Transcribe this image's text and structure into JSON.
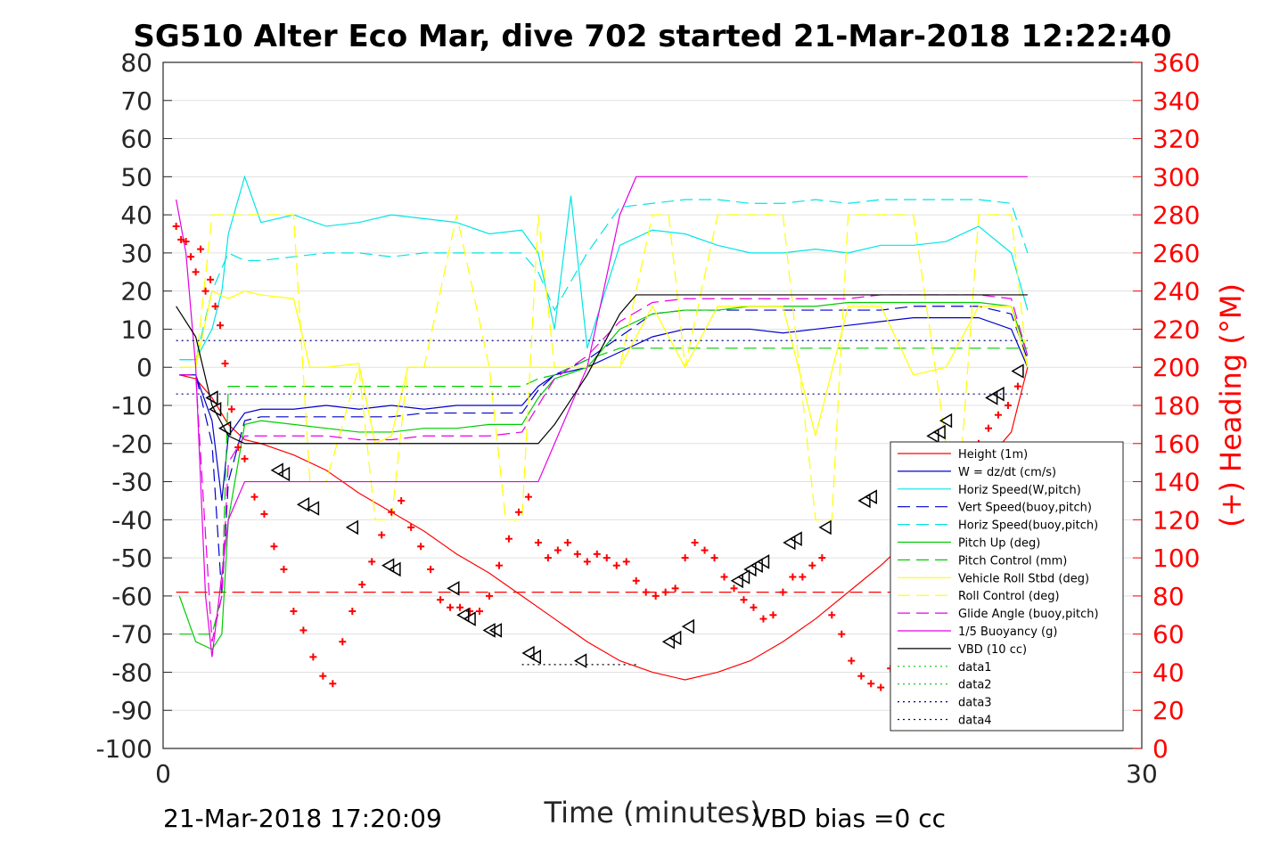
{
  "chart_data": {
    "type": "line",
    "title": "SG510 Alter Eco Mar, dive 702 started 21-Mar-2018 12:22:40",
    "xlabel": "Time (minutes)",
    "ylabel_right": "(+) Heading (°M)",
    "xlim": [
      0,
      30
    ],
    "ylim": [
      -100,
      80
    ],
    "ylim_right": [
      0,
      360
    ],
    "x_ticks": [
      "0",
      "30"
    ],
    "y_ticks": [
      "80",
      "70",
      "60",
      "50",
      "40",
      "30",
      "20",
      "10",
      "0",
      "-10",
      "-20",
      "-30",
      "-40",
      "-50",
      "-60",
      "-70",
      "-80",
      "-90",
      "-100"
    ],
    "y_ticks_right": [
      "360",
      "340",
      "320",
      "300",
      "280",
      "260",
      "240",
      "220",
      "200",
      "180",
      "160",
      "140",
      "120",
      "100",
      "80",
      "60",
      "40",
      "20",
      "0"
    ],
    "grid": "horizontal",
    "legend_position": "bottom-right",
    "footer_left": "21-Mar-2018 17:20:09",
    "footer_right": "VBD bias =0 cc",
    "series": [
      {
        "name": "Height (1m)",
        "color": "#ff0000",
        "style": "solid",
        "x": [
          0.5,
          1,
          1.5,
          2,
          2.5,
          3,
          4,
          5,
          6,
          7,
          8,
          9,
          10,
          11,
          12,
          13,
          14,
          15,
          16,
          17,
          18,
          19,
          20,
          21,
          22,
          23,
          24,
          25,
          26,
          26.5
        ],
        "y": [
          -2,
          -3,
          -8,
          -15,
          -19,
          -20,
          -23,
          -27,
          -33,
          -38,
          -43,
          -49,
          -54,
          -60,
          -66,
          -72,
          -77,
          -80,
          -82,
          -80,
          -77,
          -72,
          -66,
          -59,
          -52,
          -44,
          -36,
          -27,
          -17,
          0
        ]
      },
      {
        "name": "W = dz/dt (cm/s)",
        "color": "#0000cc",
        "style": "solid",
        "x": [
          0.5,
          1,
          1.5,
          1.8,
          2,
          2.5,
          3,
          4,
          5,
          6,
          7,
          8,
          9,
          10,
          11,
          11.5,
          12,
          13,
          14,
          15,
          16,
          17,
          18,
          19,
          20,
          21,
          22,
          23,
          24,
          25,
          26,
          26.5
        ],
        "y": [
          -2,
          -2,
          -14,
          -35,
          -18,
          -12,
          -11,
          -11,
          -10,
          -11,
          -10,
          -11,
          -10,
          -10,
          -10,
          -5,
          -2,
          0,
          4,
          8,
          10,
          10,
          10,
          9,
          10,
          11,
          12,
          13,
          13,
          13,
          10,
          0
        ]
      },
      {
        "name": "Horiz Speed(W,pitch)",
        "color": "#00e5e5",
        "style": "solid",
        "x": [
          0.5,
          1,
          1.5,
          1.8,
          2,
          2.5,
          3,
          4,
          5,
          6,
          7,
          8,
          9,
          10,
          11,
          11.5,
          12,
          12.5,
          13,
          14,
          15,
          16,
          17,
          18,
          19,
          20,
          21,
          22,
          23,
          24,
          25,
          26,
          26.5
        ],
        "y": [
          2,
          2,
          10,
          20,
          35,
          50,
          38,
          40,
          37,
          38,
          40,
          39,
          38,
          35,
          36,
          30,
          10,
          45,
          5,
          32,
          36,
          35,
          32,
          30,
          30,
          31,
          30,
          32,
          32,
          33,
          37,
          30,
          15
        ]
      },
      {
        "name": "Vert Speed(buoy,pitch)",
        "color": "#0000cc",
        "style": "dashed",
        "x": [
          0.5,
          1,
          1.5,
          1.8,
          2,
          2.5,
          3,
          4,
          5,
          6,
          7,
          8,
          9,
          10,
          11,
          11.5,
          12,
          13,
          14,
          15,
          16,
          17,
          18,
          19,
          20,
          21,
          22,
          23,
          24,
          25,
          26,
          26.5
        ],
        "y": [
          -2,
          -2,
          -20,
          -60,
          -30,
          -14,
          -13,
          -13,
          -13,
          -13,
          -13,
          -12,
          -12,
          -12,
          -12,
          -6,
          -2,
          2,
          8,
          14,
          15,
          15,
          15,
          15,
          15,
          15,
          15,
          16,
          16,
          16,
          14,
          2
        ]
      },
      {
        "name": "Horiz Speed(buoy,pitch)",
        "color": "#00e5e5",
        "style": "dashed",
        "x": [
          0.5,
          1,
          1.5,
          2,
          2.5,
          3,
          4,
          5,
          6,
          7,
          8,
          9,
          10,
          11,
          11.5,
          12,
          13,
          14,
          15,
          16,
          17,
          18,
          19,
          20,
          21,
          22,
          23,
          24,
          25,
          26,
          26.5
        ],
        "y": [
          2,
          2,
          20,
          30,
          28,
          28,
          29,
          30,
          30,
          29,
          30,
          30,
          30,
          30,
          25,
          15,
          30,
          42,
          43,
          44,
          44,
          43,
          43,
          44,
          43,
          44,
          44,
          44,
          44,
          43,
          30
        ]
      },
      {
        "name": "Pitch Up (deg)",
        "color": "#00cc00",
        "style": "solid",
        "x": [
          0.5,
          1,
          1.5,
          1.8,
          2,
          2.5,
          3,
          4,
          5,
          6,
          7,
          8,
          9,
          10,
          11,
          11.5,
          12,
          13,
          14,
          15,
          16,
          17,
          18,
          19,
          20,
          21,
          22,
          23,
          24,
          25,
          26,
          26.5
        ],
        "y": [
          -60,
          -72,
          -74,
          -70,
          -40,
          -15,
          -14,
          -15,
          -16,
          -17,
          -17,
          -16,
          -16,
          -15,
          -15,
          -8,
          -3,
          0,
          10,
          14,
          15,
          15,
          16,
          16,
          16,
          17,
          17,
          17,
          17,
          17,
          16,
          3
        ]
      },
      {
        "name": "Pitch Control (mm)",
        "color": "#00cc00",
        "style": "dashed",
        "x": [
          0.5,
          1,
          1.5,
          1.8,
          2,
          3,
          4,
          5,
          6,
          7,
          8,
          9,
          10,
          11,
          11.5,
          12,
          13,
          14,
          15,
          16,
          17,
          18,
          19,
          20,
          21,
          22,
          23,
          24,
          25,
          26,
          26.5
        ],
        "y": [
          -70,
          -70,
          -70,
          -60,
          -5,
          -5,
          -5,
          -5,
          -5,
          -5,
          -5,
          -5,
          -5,
          -5,
          -3,
          -2,
          2,
          5,
          5,
          5,
          5,
          5,
          5,
          5,
          5,
          5,
          5,
          5,
          5,
          5,
          5
        ]
      },
      {
        "name": "Vehicle Roll Stbd (deg)",
        "color": "#ffff00",
        "style": "solid",
        "x": [
          0.5,
          1,
          1.5,
          2,
          2.5,
          3,
          4,
          4.5,
          5,
          6,
          6.5,
          7,
          7.5,
          8,
          9,
          10,
          11,
          11.5,
          12,
          13,
          14,
          15,
          16,
          17,
          18,
          19,
          20,
          21,
          22,
          23,
          24,
          25,
          26,
          26.5
        ],
        "y": [
          0,
          0,
          20,
          18,
          20,
          19,
          18,
          0,
          0,
          1,
          -20,
          -18,
          0,
          0,
          0,
          0,
          0,
          0,
          0,
          0,
          0,
          16,
          0,
          16,
          16,
          16,
          -18,
          16,
          16,
          -2,
          0,
          16,
          16,
          0
        ]
      },
      {
        "name": "Roll Control (deg)",
        "color": "#ffff00",
        "style": "dashed",
        "x": [
          0.5,
          1,
          1.5,
          2,
          2.5,
          3,
          4,
          4.5,
          5,
          6,
          6.5,
          7,
          7.5,
          8,
          9,
          10,
          10.5,
          11,
          11.5,
          12,
          13,
          14,
          15,
          15.5,
          16,
          17,
          18,
          19,
          20,
          20.5,
          21,
          22,
          23,
          24,
          24.5,
          25,
          26,
          26.5
        ],
        "y": [
          0,
          0,
          40,
          40,
          40,
          40,
          40,
          -30,
          -30,
          0,
          -40,
          -40,
          0,
          0,
          40,
          0,
          -40,
          -40,
          40,
          0,
          0,
          0,
          40,
          40,
          0,
          40,
          40,
          40,
          -40,
          -40,
          40,
          40,
          40,
          -20,
          -20,
          40,
          40,
          0
        ]
      },
      {
        "name": "Glide Angle (buoy,pitch)",
        "color": "#e500e5",
        "style": "dashed",
        "x": [
          0.5,
          1,
          1.5,
          1.8,
          2,
          2.5,
          3,
          4,
          5,
          6,
          7,
          8,
          9,
          10,
          11,
          11.5,
          12,
          13,
          14,
          15,
          16,
          17,
          18,
          19,
          20,
          21,
          22,
          23,
          24,
          25,
          26,
          26.5
        ],
        "y": [
          -2,
          -2,
          -72,
          -60,
          -25,
          -18,
          -18,
          -18,
          -18,
          -19,
          -19,
          -18,
          -18,
          -18,
          -17,
          -10,
          -3,
          3,
          12,
          17,
          18,
          18,
          18,
          18,
          18,
          18,
          19,
          19,
          19,
          19,
          18,
          3
        ]
      },
      {
        "name": "1/5 Buoyancy (g)",
        "color": "#e500e5",
        "style": "solid",
        "x": [
          0.4,
          0.7,
          1,
          1.3,
          1.5,
          2,
          2.5,
          3,
          5,
          8,
          11,
          11.5,
          12,
          13,
          14,
          14.5,
          15,
          18,
          21,
          24,
          26.5
        ],
        "y": [
          44,
          30,
          0,
          -60,
          -76,
          -40,
          -30,
          -30,
          -30,
          -30,
          -30,
          -30,
          -20,
          0,
          40,
          50,
          50,
          50,
          50,
          50,
          50
        ]
      },
      {
        "name": "VBD (10 cc)",
        "color": "#000000",
        "style": "solid",
        "x": [
          0.4,
          1,
          1.5,
          2,
          2.5,
          3,
          5,
          8,
          11,
          11.5,
          12,
          13,
          14,
          14.5,
          15,
          18,
          21,
          24,
          26.5
        ],
        "y": [
          16,
          8,
          -10,
          -18,
          -20,
          -20,
          -20,
          -20,
          -20,
          -20,
          -15,
          -2,
          14,
          19,
          19,
          19,
          19,
          19,
          19
        ]
      },
      {
        "name": "data1",
        "color": "#00cc00",
        "style": "dotted",
        "x": [],
        "y": []
      },
      {
        "name": "data2",
        "color": "#00cc00",
        "style": "dotted",
        "x": [],
        "y": []
      },
      {
        "name": "data3",
        "color": "#000080",
        "style": "dotted",
        "x": [
          0.4,
          26.5
        ],
        "y": [
          7,
          7
        ]
      },
      {
        "name": "data4",
        "color": "#000080",
        "style": "dotted",
        "x": [
          0.4,
          26.5
        ],
        "y": [
          -7,
          -7
        ]
      }
    ],
    "extra_lines": [
      {
        "color": "#ff0000",
        "style": "dashed",
        "x": [
          0.4,
          26.5
        ],
        "y": [
          -59,
          -59
        ]
      },
      {
        "color": "#000000",
        "style": "dotted",
        "x": [
          11,
          14.5
        ],
        "y": [
          -78,
          -78
        ]
      }
    ],
    "heading_points": {
      "color": "#ff0000",
      "marker": "+",
      "x": [
        0.4,
        0.55,
        0.7,
        0.85,
        1.0,
        1.15,
        1.3,
        1.45,
        1.6,
        1.75,
        1.9,
        2.1,
        2.3,
        2.5,
        2.8,
        3.1,
        3.4,
        3.7,
        4,
        4.3,
        4.6,
        4.9,
        5.2,
        5.5,
        5.8,
        6.1,
        6.4,
        6.7,
        7,
        7.3,
        7.6,
        7.9,
        8.2,
        8.5,
        8.8,
        9.1,
        9.4,
        9.7,
        10,
        10.3,
        10.6,
        10.9,
        11.2,
        11.5,
        11.8,
        12.1,
        12.4,
        12.7,
        13,
        13.3,
        13.6,
        13.9,
        14.2,
        14.5,
        14.8,
        15.1,
        15.4,
        15.7,
        16,
        16.3,
        16.6,
        16.9,
        17.2,
        17.5,
        17.8,
        18.1,
        18.4,
        18.7,
        19,
        19.3,
        19.6,
        19.9,
        20.2,
        20.5,
        20.8,
        21.1,
        21.4,
        21.7,
        22,
        22.3,
        22.6,
        22.9,
        23.2,
        23.5,
        23.8,
        24.1,
        24.4,
        24.7,
        25,
        25.3,
        25.6,
        25.9,
        26.2
      ],
      "y": [
        274,
        267,
        266,
        258,
        250,
        262,
        240,
        246,
        232,
        222,
        202,
        178,
        158,
        152,
        132,
        123,
        106,
        94,
        72,
        62,
        48,
        38,
        34,
        56,
        72,
        86,
        98,
        112,
        124,
        130,
        116,
        106,
        94,
        78,
        74,
        74,
        72,
        72,
        80,
        96,
        110,
        124,
        132,
        108,
        100,
        104,
        108,
        102,
        98,
        102,
        100,
        96,
        98,
        88,
        82,
        80,
        82,
        84,
        100,
        108,
        104,
        100,
        90,
        84,
        78,
        74,
        68,
        70,
        82,
        90,
        90,
        96,
        100,
        70,
        60,
        46,
        38,
        34,
        32,
        42,
        54,
        72,
        88,
        110,
        122,
        135,
        142,
        150,
        160,
        168,
        175,
        180,
        190
      ]
    },
    "triangle_markers": {
      "color": "#000000",
      "x": [
        1.5,
        1.6,
        1.9,
        3.5,
        3.7,
        4.3,
        4.6,
        5.8,
        6.9,
        7.1,
        8.9,
        9.2,
        9.4,
        10.0,
        10.2,
        11.2,
        11.4,
        12.8,
        15.5,
        15.7,
        16.1,
        17.6,
        17.8,
        18.0,
        18.2,
        18.4,
        19.2,
        19.4,
        20.3,
        21.5,
        21.7,
        23.6,
        23.8,
        24.0,
        25.4,
        25.6,
        26.2
      ],
      "y": [
        -8,
        -11,
        -16,
        -27,
        -28,
        -36,
        -37,
        -42,
        -52,
        -53,
        -58,
        -65,
        -66,
        -69,
        -69,
        -75,
        -76,
        -77,
        -72,
        -71,
        -68,
        -56,
        -55,
        -53,
        -52,
        -51,
        -46,
        -45,
        -42,
        -35,
        -34,
        -18,
        -17,
        -14,
        -8,
        -7,
        -1
      ]
    }
  }
}
